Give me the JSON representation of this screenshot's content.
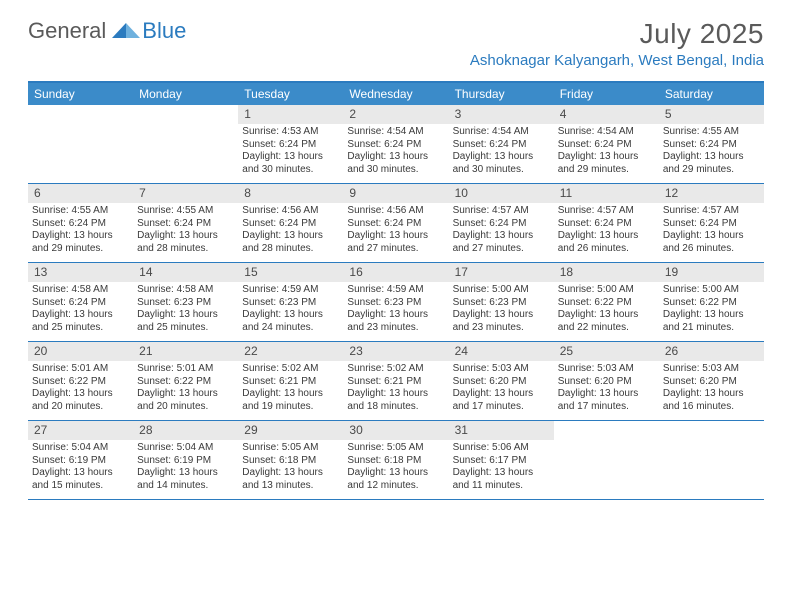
{
  "logo": {
    "part1": "General",
    "part2": "Blue"
  },
  "title": "July 2025",
  "location": "Ashoknagar Kalyangarh, West Bengal, India",
  "colors": {
    "accent": "#2b7bbf",
    "header_bg": "#3b8bc9",
    "daynum_bg": "#e9e9e9",
    "text": "#3a3a3a",
    "title_text": "#5a5a5a"
  },
  "weekdays": [
    "Sunday",
    "Monday",
    "Tuesday",
    "Wednesday",
    "Thursday",
    "Friday",
    "Saturday"
  ],
  "weeks": [
    [
      null,
      null,
      {
        "n": "1",
        "sunrise": "4:53 AM",
        "sunset": "6:24 PM",
        "daylight": "13 hours and 30 minutes."
      },
      {
        "n": "2",
        "sunrise": "4:54 AM",
        "sunset": "6:24 PM",
        "daylight": "13 hours and 30 minutes."
      },
      {
        "n": "3",
        "sunrise": "4:54 AM",
        "sunset": "6:24 PM",
        "daylight": "13 hours and 30 minutes."
      },
      {
        "n": "4",
        "sunrise": "4:54 AM",
        "sunset": "6:24 PM",
        "daylight": "13 hours and 29 minutes."
      },
      {
        "n": "5",
        "sunrise": "4:55 AM",
        "sunset": "6:24 PM",
        "daylight": "13 hours and 29 minutes."
      }
    ],
    [
      {
        "n": "6",
        "sunrise": "4:55 AM",
        "sunset": "6:24 PM",
        "daylight": "13 hours and 29 minutes."
      },
      {
        "n": "7",
        "sunrise": "4:55 AM",
        "sunset": "6:24 PM",
        "daylight": "13 hours and 28 minutes."
      },
      {
        "n": "8",
        "sunrise": "4:56 AM",
        "sunset": "6:24 PM",
        "daylight": "13 hours and 28 minutes."
      },
      {
        "n": "9",
        "sunrise": "4:56 AM",
        "sunset": "6:24 PM",
        "daylight": "13 hours and 27 minutes."
      },
      {
        "n": "10",
        "sunrise": "4:57 AM",
        "sunset": "6:24 PM",
        "daylight": "13 hours and 27 minutes."
      },
      {
        "n": "11",
        "sunrise": "4:57 AM",
        "sunset": "6:24 PM",
        "daylight": "13 hours and 26 minutes."
      },
      {
        "n": "12",
        "sunrise": "4:57 AM",
        "sunset": "6:24 PM",
        "daylight": "13 hours and 26 minutes."
      }
    ],
    [
      {
        "n": "13",
        "sunrise": "4:58 AM",
        "sunset": "6:24 PM",
        "daylight": "13 hours and 25 minutes."
      },
      {
        "n": "14",
        "sunrise": "4:58 AM",
        "sunset": "6:23 PM",
        "daylight": "13 hours and 25 minutes."
      },
      {
        "n": "15",
        "sunrise": "4:59 AM",
        "sunset": "6:23 PM",
        "daylight": "13 hours and 24 minutes."
      },
      {
        "n": "16",
        "sunrise": "4:59 AM",
        "sunset": "6:23 PM",
        "daylight": "13 hours and 23 minutes."
      },
      {
        "n": "17",
        "sunrise": "5:00 AM",
        "sunset": "6:23 PM",
        "daylight": "13 hours and 23 minutes."
      },
      {
        "n": "18",
        "sunrise": "5:00 AM",
        "sunset": "6:22 PM",
        "daylight": "13 hours and 22 minutes."
      },
      {
        "n": "19",
        "sunrise": "5:00 AM",
        "sunset": "6:22 PM",
        "daylight": "13 hours and 21 minutes."
      }
    ],
    [
      {
        "n": "20",
        "sunrise": "5:01 AM",
        "sunset": "6:22 PM",
        "daylight": "13 hours and 20 minutes."
      },
      {
        "n": "21",
        "sunrise": "5:01 AM",
        "sunset": "6:22 PM",
        "daylight": "13 hours and 20 minutes."
      },
      {
        "n": "22",
        "sunrise": "5:02 AM",
        "sunset": "6:21 PM",
        "daylight": "13 hours and 19 minutes."
      },
      {
        "n": "23",
        "sunrise": "5:02 AM",
        "sunset": "6:21 PM",
        "daylight": "13 hours and 18 minutes."
      },
      {
        "n": "24",
        "sunrise": "5:03 AM",
        "sunset": "6:20 PM",
        "daylight": "13 hours and 17 minutes."
      },
      {
        "n": "25",
        "sunrise": "5:03 AM",
        "sunset": "6:20 PM",
        "daylight": "13 hours and 17 minutes."
      },
      {
        "n": "26",
        "sunrise": "5:03 AM",
        "sunset": "6:20 PM",
        "daylight": "13 hours and 16 minutes."
      }
    ],
    [
      {
        "n": "27",
        "sunrise": "5:04 AM",
        "sunset": "6:19 PM",
        "daylight": "13 hours and 15 minutes."
      },
      {
        "n": "28",
        "sunrise": "5:04 AM",
        "sunset": "6:19 PM",
        "daylight": "13 hours and 14 minutes."
      },
      {
        "n": "29",
        "sunrise": "5:05 AM",
        "sunset": "6:18 PM",
        "daylight": "13 hours and 13 minutes."
      },
      {
        "n": "30",
        "sunrise": "5:05 AM",
        "sunset": "6:18 PM",
        "daylight": "13 hours and 12 minutes."
      },
      {
        "n": "31",
        "sunrise": "5:06 AM",
        "sunset": "6:17 PM",
        "daylight": "13 hours and 11 minutes."
      },
      null,
      null
    ]
  ],
  "labels": {
    "sunrise": "Sunrise:",
    "sunset": "Sunset:",
    "daylight": "Daylight:"
  }
}
